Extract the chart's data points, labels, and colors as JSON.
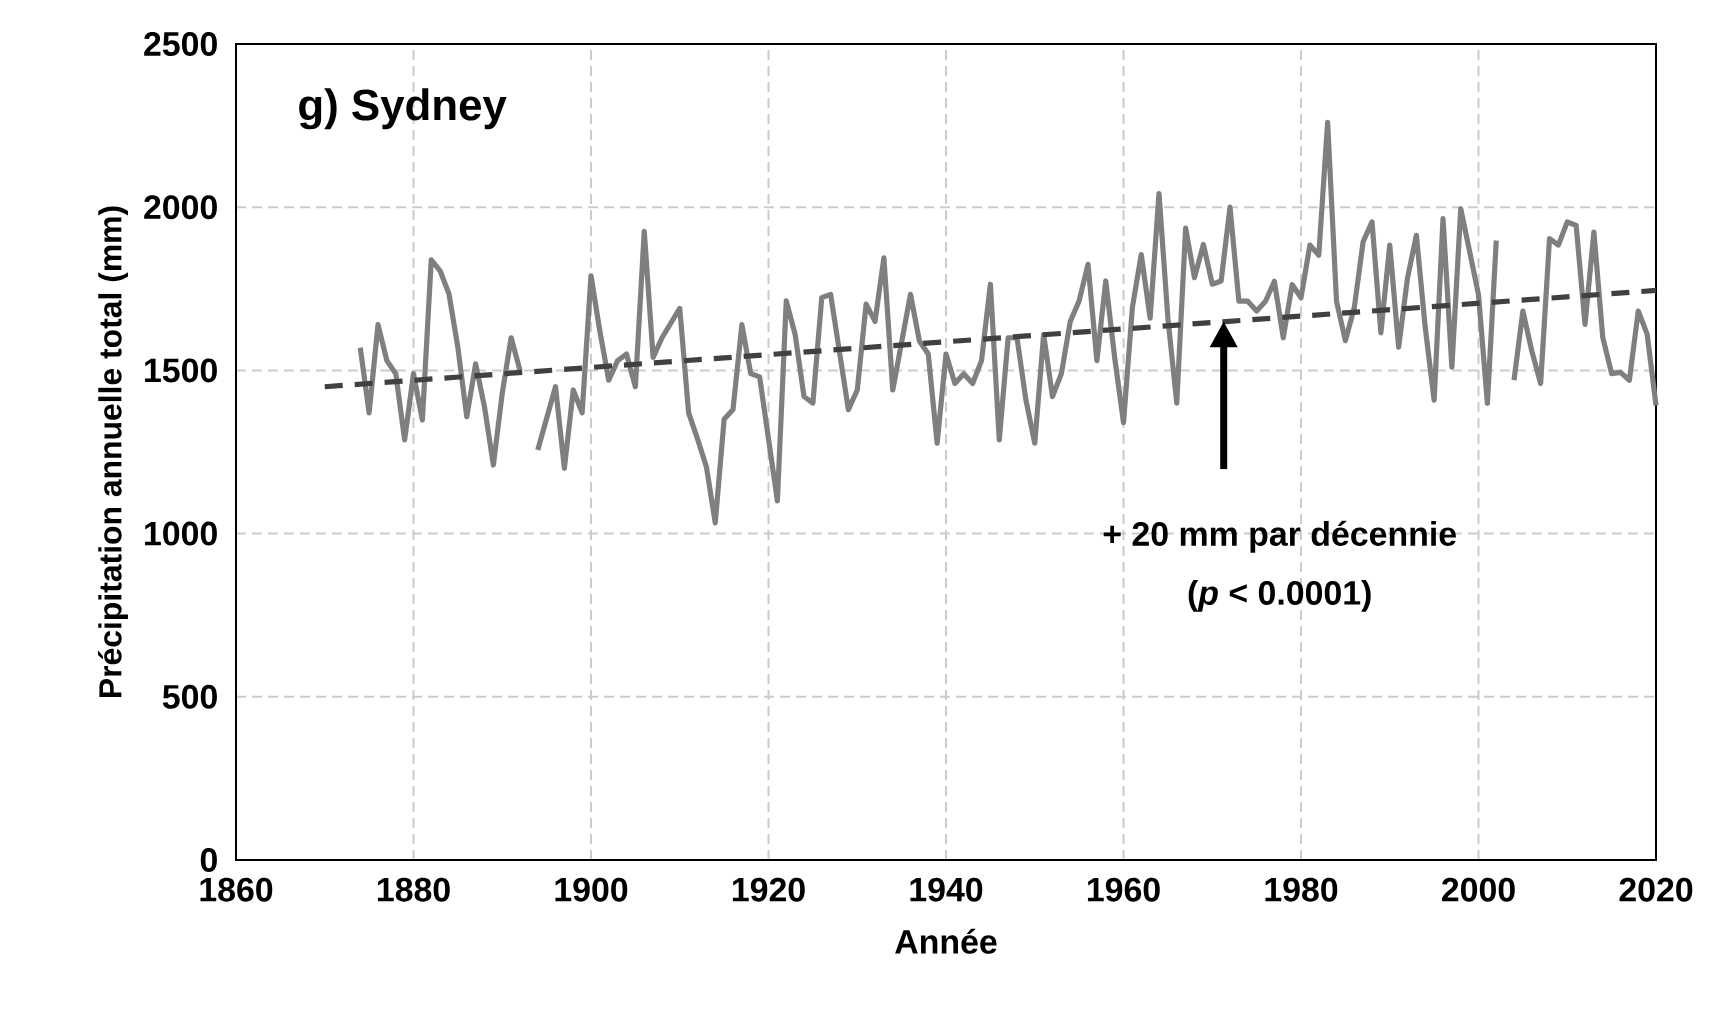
{
  "chart_data": {
    "type": "line",
    "title": "g) Sydney",
    "xlabel": "Année",
    "ylabel": "Précipitation annuelle total (mm)",
    "xlim": [
      1860,
      2020
    ],
    "xticks": [
      1860,
      1880,
      1900,
      1920,
      1940,
      1960,
      1980,
      2000,
      2020
    ],
    "ylim": [
      0,
      2500
    ],
    "yticks": [
      0,
      500,
      1000,
      1500,
      2000,
      2500
    ],
    "grid": true,
    "marker": "none",
    "series": [
      {
        "color": "#7f7f7f",
        "line_style": "solid",
        "x": [
          1874,
          1875,
          1876,
          1877,
          1878,
          1879,
          1880,
          1881,
          1882,
          1883,
          1884,
          1885,
          1886,
          1887,
          1888,
          1889,
          1890,
          1891,
          1892,
          1893,
          1894,
          1896,
          1897,
          1898,
          1899,
          1900,
          1901,
          1902,
          1903,
          1904,
          1905,
          1906,
          1907,
          1908,
          1910,
          1911,
          1912,
          1913,
          1914,
          1915,
          1916,
          1917,
          1918,
          1919,
          1920,
          1921,
          1922,
          1923,
          1924,
          1925,
          1926,
          1927,
          1929,
          1930,
          1931,
          1932,
          1933,
          1934,
          1936,
          1937,
          1938,
          1939,
          1940,
          1941,
          1942,
          1943,
          1944,
          1945,
          1946,
          1947,
          1948,
          1949,
          1950,
          1951,
          1952,
          1953,
          1954,
          1955,
          1956,
          1957,
          1958,
          1959,
          1960,
          1961,
          1962,
          1963,
          1964,
          1965,
          1966,
          1967,
          1968,
          1969,
          1970,
          1971,
          1972,
          1973,
          1974,
          1975,
          1976,
          1977,
          1978,
          1979,
          1980,
          1981,
          1982,
          1983,
          1984,
          1985,
          1986,
          1987,
          1988,
          1989,
          1990,
          1991,
          1992,
          1993,
          1994,
          1995,
          1996,
          1997,
          1998,
          1999,
          2000,
          2001,
          2002,
          2003,
          2004,
          2005,
          2006,
          2007,
          2008,
          2009,
          2010,
          2011,
          2012,
          2013,
          2014,
          2015,
          2016,
          2017,
          2018,
          2019,
          2020
        ],
        "values": [
          1570,
          1370,
          1640,
          1530,
          1490,
          1287,
          1490,
          1348,
          1839,
          1805,
          1734,
          1570,
          1358,
          1520,
          1388,
          1210,
          1430,
          1600,
          1500,
          null,
          1256,
          1450,
          1200,
          1440,
          1370,
          1790,
          1620,
          1470,
          1530,
          1550,
          1450,
          1926,
          1540,
          1600,
          1690,
          1370,
          1290,
          1205,
          1033,
          1350,
          1380,
          1640,
          1490,
          1480,
          1290,
          1100,
          1713,
          1610,
          1420,
          1400,
          1723,
          1733,
          1380,
          1440,
          1703,
          1650,
          1845,
          1440,
          1733,
          1590,
          1550,
          1277,
          1550,
          1460,
          1490,
          1460,
          1530,
          1764,
          1287,
          1600,
          1600,
          1410,
          1277,
          1610,
          1420,
          1490,
          1650,
          1713,
          1825,
          1530,
          1774,
          1540,
          1340,
          1693,
          1855,
          1660,
          2042,
          1660,
          1400,
          1936,
          1784,
          1886,
          1764,
          1774,
          2000,
          1712,
          1712,
          1682,
          1712,
          1773,
          1600,
          1763,
          1722,
          1884,
          1853,
          2260,
          1712,
          1591,
          1692,
          1894,
          1955,
          1615,
          1884,
          1571,
          1783,
          1914,
          1631,
          1409,
          1965,
          1510,
          1995,
          1864,
          1732,
          1399,
          1898,
          null,
          1470,
          1682,
          1560,
          1460,
          1904,
          1884,
          1955,
          1944,
          1641,
          1924,
          1601,
          1490,
          1494,
          1470,
          1682,
          1611,
          1393
        ]
      },
      {
        "type": "line",
        "color": "#404040",
        "line_style": "dashed",
        "x": [
          1870,
          2020
        ],
        "values": [
          1450,
          1745
        ]
      }
    ],
    "annotations": [
      "+ 20 mm par décennie",
      "(*p* < 0.0001)"
    ]
  }
}
